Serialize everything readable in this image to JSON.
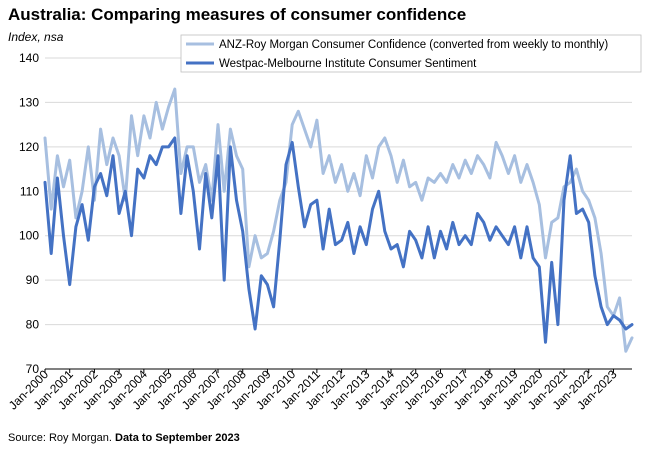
{
  "title": "Australia: Comparing measures of consumer confidence",
  "unit_label": "Index, nsa",
  "source": {
    "prefix": "Source: Roy Morgan.",
    "emphasis": "Data to September 2023"
  },
  "colors": {
    "anz": "#a7bfe0",
    "westpac": "#4472c4",
    "grid": "#d9d9d9",
    "axis": "#000000"
  },
  "chart_data": {
    "type": "line",
    "title": "Australia: Comparing measures of consumer confidence",
    "xlabel": "",
    "ylabel": "Index, nsa",
    "ylim": [
      70,
      140
    ],
    "yticks": [
      70,
      80,
      90,
      100,
      110,
      120,
      130,
      140
    ],
    "x_range": [
      2000.0,
      2023.75
    ],
    "xtick_labels": [
      "Jan-2000",
      "Jan-2001",
      "Jan-2002",
      "Jan-2003",
      "Jan-2004",
      "Jan-2005",
      "Jan-2006",
      "Jan-2007",
      "Jan-2008",
      "Jan-2009",
      "Jan-2010",
      "Jan-2011",
      "Jan-2012",
      "Jan-2013",
      "Jan-2014",
      "Jan-2015",
      "Jan-2016",
      "Jan-2017",
      "Jan-2018",
      "Jan-2019",
      "Jan-2020",
      "Jan-2021",
      "Jan-2022",
      "Jan-2023"
    ],
    "xtick_values": [
      2000,
      2001,
      2002,
      2003,
      2004,
      2005,
      2006,
      2007,
      2008,
      2009,
      2010,
      2011,
      2012,
      2013,
      2014,
      2015,
      2016,
      2017,
      2018,
      2019,
      2020,
      2021,
      2022,
      2023
    ],
    "grid": true,
    "legend_position": "top-right",
    "series": [
      {
        "name": "ANZ-Roy Morgan Consumer Confidence (converted from weekly to monthly)",
        "x": [
          2000.0,
          2000.25,
          2000.5,
          2000.75,
          2001.0,
          2001.25,
          2001.5,
          2001.75,
          2002.0,
          2002.25,
          2002.5,
          2002.75,
          2003.0,
          2003.25,
          2003.5,
          2003.75,
          2004.0,
          2004.25,
          2004.5,
          2004.75,
          2005.0,
          2005.25,
          2005.5,
          2005.75,
          2006.0,
          2006.25,
          2006.5,
          2006.75,
          2007.0,
          2007.25,
          2007.5,
          2007.75,
          2008.0,
          2008.25,
          2008.5,
          2008.75,
          2009.0,
          2009.25,
          2009.5,
          2009.75,
          2010.0,
          2010.25,
          2010.5,
          2010.75,
          2011.0,
          2011.25,
          2011.5,
          2011.75,
          2012.0,
          2012.25,
          2012.5,
          2012.75,
          2013.0,
          2013.25,
          2013.5,
          2013.75,
          2014.0,
          2014.25,
          2014.5,
          2014.75,
          2015.0,
          2015.25,
          2015.5,
          2015.75,
          2016.0,
          2016.25,
          2016.5,
          2016.75,
          2017.0,
          2017.25,
          2017.5,
          2017.75,
          2018.0,
          2018.25,
          2018.5,
          2018.75,
          2019.0,
          2019.25,
          2019.5,
          2019.75,
          2020.0,
          2020.25,
          2020.5,
          2020.75,
          2021.0,
          2021.25,
          2021.5,
          2021.75,
          2022.0,
          2022.25,
          2022.5,
          2022.75,
          2023.0,
          2023.25,
          2023.5,
          2023.75
        ],
        "values": [
          122,
          106,
          118,
          111,
          117,
          104,
          110,
          120,
          108,
          124,
          116,
          122,
          118,
          108,
          127,
          118,
          127,
          122,
          130,
          124,
          129,
          133,
          114,
          120,
          120,
          112,
          116,
          108,
          125,
          110,
          124,
          118,
          115,
          93,
          100,
          95,
          96,
          101,
          108,
          112,
          125,
          128,
          124,
          120,
          126,
          114,
          118,
          112,
          116,
          110,
          114,
          109,
          118,
          113,
          120,
          122,
          118,
          112,
          117,
          111,
          112,
          108,
          113,
          112,
          114,
          112,
          116,
          113,
          117,
          114,
          118,
          116,
          113,
          121,
          118,
          114,
          118,
          112,
          116,
          112,
          107,
          95,
          103,
          104,
          111,
          112,
          115,
          110,
          108,
          104,
          96,
          84,
          82,
          86,
          74,
          77
        ]
      },
      {
        "name": "Westpac-Melbourne Institute Consumer Sentiment",
        "x": [
          2000.0,
          2000.25,
          2000.5,
          2000.75,
          2001.0,
          2001.25,
          2001.5,
          2001.75,
          2002.0,
          2002.25,
          2002.5,
          2002.75,
          2003.0,
          2003.25,
          2003.5,
          2003.75,
          2004.0,
          2004.25,
          2004.5,
          2004.75,
          2005.0,
          2005.25,
          2005.5,
          2005.75,
          2006.0,
          2006.25,
          2006.5,
          2006.75,
          2007.0,
          2007.25,
          2007.5,
          2007.75,
          2008.0,
          2008.25,
          2008.5,
          2008.75,
          2009.0,
          2009.25,
          2009.5,
          2009.75,
          2010.0,
          2010.25,
          2010.5,
          2010.75,
          2011.0,
          2011.25,
          2011.5,
          2011.75,
          2012.0,
          2012.25,
          2012.5,
          2012.75,
          2013.0,
          2013.25,
          2013.5,
          2013.75,
          2014.0,
          2014.25,
          2014.5,
          2014.75,
          2015.0,
          2015.25,
          2015.5,
          2015.75,
          2016.0,
          2016.25,
          2016.5,
          2016.75,
          2017.0,
          2017.25,
          2017.5,
          2017.75,
          2018.0,
          2018.25,
          2018.5,
          2018.75,
          2019.0,
          2019.25,
          2019.5,
          2019.75,
          2020.0,
          2020.25,
          2020.5,
          2020.75,
          2021.0,
          2021.25,
          2021.5,
          2021.75,
          2022.0,
          2022.25,
          2022.5,
          2022.75,
          2023.0,
          2023.25,
          2023.5,
          2023.75
        ],
        "values": [
          112,
          96,
          113,
          100,
          89,
          102,
          107,
          99,
          111,
          114,
          109,
          118,
          105,
          110,
          100,
          115,
          113,
          118,
          116,
          120,
          120,
          122,
          105,
          118,
          110,
          97,
          114,
          104,
          118,
          90,
          120,
          108,
          101,
          88,
          79,
          91,
          89,
          84,
          99,
          116,
          121,
          111,
          102,
          107,
          108,
          97,
          106,
          98,
          99,
          103,
          96,
          102,
          98,
          106,
          110,
          101,
          97,
          98,
          93,
          101,
          99,
          95,
          102,
          95,
          101,
          97,
          103,
          98,
          100,
          98,
          105,
          103,
          99,
          102,
          100,
          98,
          102,
          95,
          102,
          95,
          93,
          76,
          94,
          80,
          108,
          118,
          105,
          106,
          103,
          91,
          84,
          80,
          82,
          81,
          79,
          80
        ]
      }
    ]
  }
}
